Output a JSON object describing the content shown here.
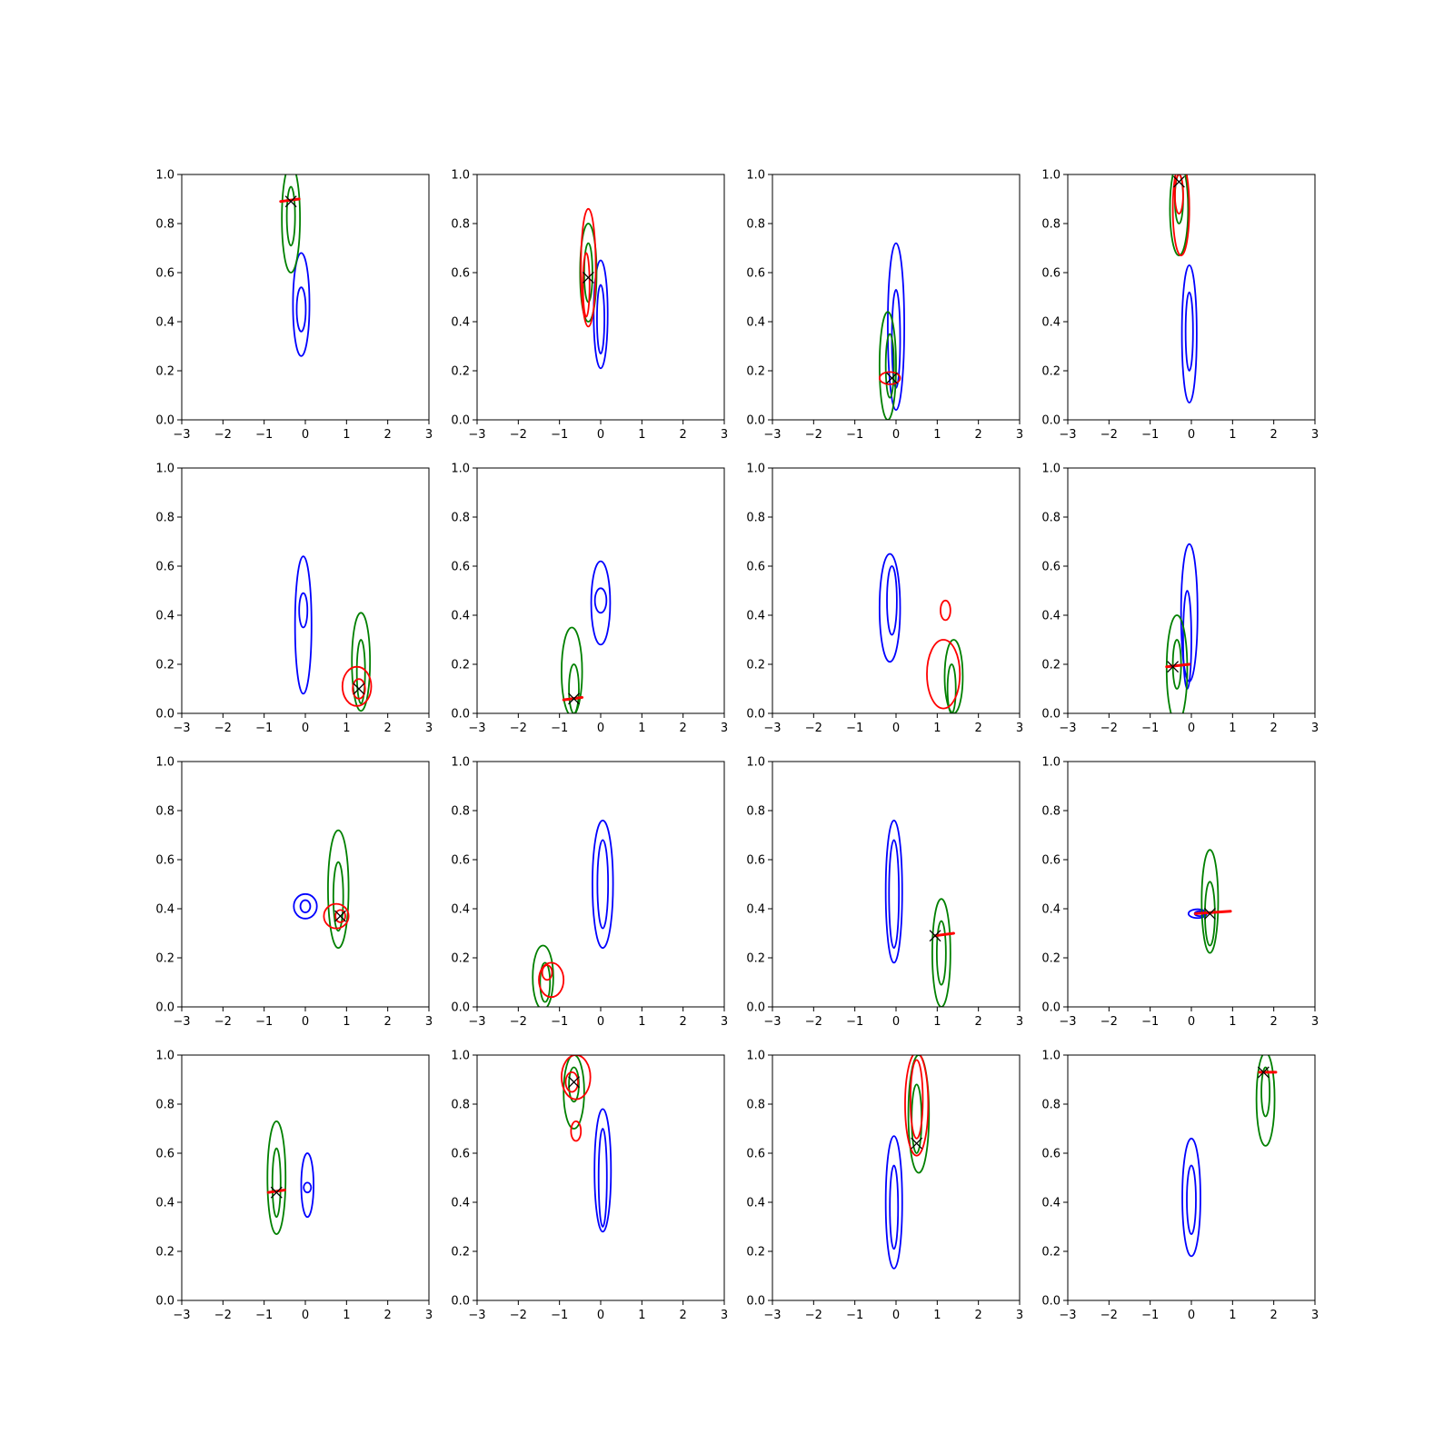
{
  "colors": {
    "blue": "#0000ff",
    "green": "#008000",
    "red": "#ff0000",
    "marker": "#000000"
  },
  "chart_data": [
    {
      "type": "contour",
      "xlim": [
        -3,
        3
      ],
      "ylim": [
        0,
        1
      ],
      "xticks": [
        "−3",
        "−2",
        "−1",
        "0",
        "1",
        "2",
        "3"
      ],
      "yticks": [
        "0.0",
        "0.2",
        "0.4",
        "0.6",
        "0.8",
        "1.0"
      ],
      "grid": false,
      "blue": [
        {
          "cx": -0.1,
          "cy": 0.47,
          "rx": 0.2,
          "ry": 0.21
        },
        {
          "cx": -0.1,
          "cy": 0.45,
          "rx": 0.11,
          "ry": 0.09
        }
      ],
      "green": [
        {
          "cx": -0.35,
          "cy": 0.82,
          "rx": 0.22,
          "ry": 0.22
        },
        {
          "cx": -0.35,
          "cy": 0.83,
          "rx": 0.1,
          "ry": 0.12
        }
      ],
      "red": [],
      "red_mark": [
        {
          "x1": -0.6,
          "y1": 0.89,
          "x2": -0.15,
          "y2": 0.9
        }
      ],
      "marker": {
        "x": -0.35,
        "y": 0.89
      }
    },
    {
      "type": "contour",
      "xlim": [
        -3,
        3
      ],
      "ylim": [
        0,
        1
      ],
      "xticks": [
        "−3",
        "−2",
        "−1",
        "0",
        "1",
        "2",
        "3"
      ],
      "yticks": [
        "0.0",
        "0.2",
        "0.4",
        "0.6",
        "0.8",
        "1.0"
      ],
      "grid": false,
      "blue": [
        {
          "cx": 0.0,
          "cy": 0.43,
          "rx": 0.17,
          "ry": 0.22
        },
        {
          "cx": 0.0,
          "cy": 0.41,
          "rx": 0.09,
          "ry": 0.14
        }
      ],
      "green": [
        {
          "cx": -0.3,
          "cy": 0.6,
          "rx": 0.2,
          "ry": 0.2
        },
        {
          "cx": -0.3,
          "cy": 0.6,
          "rx": 0.1,
          "ry": 0.12
        }
      ],
      "red": [
        {
          "cx": -0.3,
          "cy": 0.62,
          "rx": 0.18,
          "ry": 0.24
        },
        {
          "cx": -0.35,
          "cy": 0.55,
          "rx": 0.08,
          "ry": 0.13
        }
      ],
      "red_mark": [],
      "marker": {
        "x": -0.3,
        "y": 0.58
      }
    },
    {
      "type": "contour",
      "xlim": [
        -3,
        3
      ],
      "ylim": [
        0,
        1
      ],
      "xticks": [
        "−3",
        "−2",
        "−1",
        "0",
        "1",
        "2",
        "3"
      ],
      "yticks": [
        "0.0",
        "0.2",
        "0.4",
        "0.6",
        "0.8",
        "1.0"
      ],
      "grid": false,
      "blue": [
        {
          "cx": 0.0,
          "cy": 0.38,
          "rx": 0.2,
          "ry": 0.34
        },
        {
          "cx": 0.0,
          "cy": 0.33,
          "rx": 0.1,
          "ry": 0.2
        }
      ],
      "green": [
        {
          "cx": -0.2,
          "cy": 0.22,
          "rx": 0.2,
          "ry": 0.22
        },
        {
          "cx": -0.15,
          "cy": 0.22,
          "rx": 0.1,
          "ry": 0.13
        }
      ],
      "red": [
        {
          "cx": -0.15,
          "cy": 0.17,
          "rx": 0.25,
          "ry": 0.025
        }
      ],
      "red_mark": [],
      "marker": {
        "x": -0.1,
        "y": 0.17
      }
    },
    {
      "type": "contour",
      "xlim": [
        -3,
        3
      ],
      "ylim": [
        0,
        1
      ],
      "xticks": [
        "−3",
        "−2",
        "−1",
        "0",
        "1",
        "2",
        "3"
      ],
      "yticks": [
        "0.0",
        "0.2",
        "0.4",
        "0.6",
        "0.8",
        "1.0"
      ],
      "grid": false,
      "blue": [
        {
          "cx": -0.05,
          "cy": 0.35,
          "rx": 0.18,
          "ry": 0.28
        },
        {
          "cx": -0.05,
          "cy": 0.36,
          "rx": 0.09,
          "ry": 0.16
        }
      ],
      "green": [
        {
          "cx": -0.3,
          "cy": 0.86,
          "rx": 0.22,
          "ry": 0.19
        },
        {
          "cx": -0.3,
          "cy": 0.9,
          "rx": 0.1,
          "ry": 0.1
        }
      ],
      "red": [
        {
          "cx": -0.25,
          "cy": 0.86,
          "rx": 0.2,
          "ry": 0.19
        },
        {
          "cx": -0.3,
          "cy": 0.92,
          "rx": 0.1,
          "ry": 0.08
        }
      ],
      "red_mark": [],
      "marker": {
        "x": -0.3,
        "y": 0.97
      }
    },
    {
      "type": "contour",
      "xlim": [
        -3,
        3
      ],
      "ylim": [
        0,
        1
      ],
      "xticks": [
        "−3",
        "−2",
        "−1",
        "0",
        "1",
        "2",
        "3"
      ],
      "yticks": [
        "0.0",
        "0.2",
        "0.4",
        "0.6",
        "0.8",
        "1.0"
      ],
      "grid": false,
      "blue": [
        {
          "cx": -0.05,
          "cy": 0.36,
          "rx": 0.2,
          "ry": 0.28
        },
        {
          "cx": -0.05,
          "cy": 0.42,
          "rx": 0.1,
          "ry": 0.07
        }
      ],
      "green": [
        {
          "cx": 1.35,
          "cy": 0.21,
          "rx": 0.22,
          "ry": 0.2
        },
        {
          "cx": 1.35,
          "cy": 0.17,
          "rx": 0.1,
          "ry": 0.13
        }
      ],
      "red": [
        {
          "cx": 1.25,
          "cy": 0.11,
          "rx": 0.35,
          "ry": 0.08
        },
        {
          "cx": 1.3,
          "cy": 0.1,
          "rx": 0.15,
          "ry": 0.04
        }
      ],
      "red_mark": [],
      "marker": {
        "x": 1.3,
        "y": 0.1
      }
    },
    {
      "type": "contour",
      "xlim": [
        -3,
        3
      ],
      "ylim": [
        0,
        1
      ],
      "xticks": [
        "−3",
        "−2",
        "−1",
        "0",
        "1",
        "2",
        "3"
      ],
      "yticks": [
        "0.0",
        "0.2",
        "0.4",
        "0.6",
        "0.8",
        "1.0"
      ],
      "grid": false,
      "blue": [
        {
          "cx": 0.0,
          "cy": 0.45,
          "rx": 0.23,
          "ry": 0.17
        },
        {
          "cx": 0.0,
          "cy": 0.46,
          "rx": 0.14,
          "ry": 0.05
        }
      ],
      "green": [
        {
          "cx": -0.7,
          "cy": 0.17,
          "rx": 0.25,
          "ry": 0.18
        },
        {
          "cx": -0.65,
          "cy": 0.1,
          "rx": 0.12,
          "ry": 0.1
        }
      ],
      "red": [],
      "red_mark": [
        {
          "x1": -0.9,
          "y1": 0.055,
          "x2": -0.45,
          "y2": 0.065
        }
      ],
      "marker": {
        "x": -0.65,
        "y": 0.06
      }
    },
    {
      "type": "contour",
      "xlim": [
        -3,
        3
      ],
      "ylim": [
        0,
        1
      ],
      "xticks": [
        "−3",
        "−2",
        "−1",
        "0",
        "1",
        "2",
        "3"
      ],
      "yticks": [
        "0.0",
        "0.2",
        "0.4",
        "0.6",
        "0.8",
        "1.0"
      ],
      "grid": false,
      "blue": [
        {
          "cx": -0.15,
          "cy": 0.43,
          "rx": 0.25,
          "ry": 0.22
        },
        {
          "cx": -0.1,
          "cy": 0.46,
          "rx": 0.12,
          "ry": 0.14
        }
      ],
      "green": [
        {
          "cx": 1.4,
          "cy": 0.15,
          "rx": 0.22,
          "ry": 0.15
        },
        {
          "cx": 1.35,
          "cy": 0.1,
          "rx": 0.1,
          "ry": 0.1
        }
      ],
      "red": [
        {
          "cx": 1.15,
          "cy": 0.16,
          "rx": 0.4,
          "ry": 0.14
        },
        {
          "cx": 1.2,
          "cy": 0.42,
          "rx": 0.12,
          "ry": 0.04
        }
      ],
      "red_mark": [],
      "marker": null
    },
    {
      "type": "contour",
      "xlim": [
        -3,
        3
      ],
      "ylim": [
        0,
        1
      ],
      "xticks": [
        "−3",
        "−2",
        "−1",
        "0",
        "1",
        "2",
        "3"
      ],
      "yticks": [
        "0.0",
        "0.2",
        "0.4",
        "0.6",
        "0.8",
        "1.0"
      ],
      "grid": false,
      "blue": [
        {
          "cx": -0.05,
          "cy": 0.41,
          "rx": 0.2,
          "ry": 0.28
        },
        {
          "cx": -0.1,
          "cy": 0.3,
          "rx": 0.1,
          "ry": 0.2
        }
      ],
      "green": [
        {
          "cx": -0.35,
          "cy": 0.18,
          "rx": 0.25,
          "ry": 0.22
        },
        {
          "cx": -0.35,
          "cy": 0.2,
          "rx": 0.1,
          "ry": 0.1
        }
      ],
      "red": [],
      "red_mark": [
        {
          "x1": -0.6,
          "y1": 0.19,
          "x2": -0.05,
          "y2": 0.2
        }
      ],
      "marker": {
        "x": -0.45,
        "y": 0.19
      }
    },
    {
      "type": "contour",
      "xlim": [
        -3,
        3
      ],
      "ylim": [
        0,
        1
      ],
      "xticks": [
        "−3",
        "−2",
        "−1",
        "0",
        "1",
        "2",
        "3"
      ],
      "yticks": [
        "0.0",
        "0.2",
        "0.4",
        "0.6",
        "0.8",
        "1.0"
      ],
      "grid": false,
      "blue": [
        {
          "cx": 0.0,
          "cy": 0.41,
          "rx": 0.28,
          "ry": 0.05
        },
        {
          "cx": 0.0,
          "cy": 0.41,
          "rx": 0.12,
          "ry": 0.025
        }
      ],
      "green": [
        {
          "cx": 0.8,
          "cy": 0.48,
          "rx": 0.25,
          "ry": 0.24
        },
        {
          "cx": 0.8,
          "cy": 0.45,
          "rx": 0.12,
          "ry": 0.14
        }
      ],
      "red": [
        {
          "cx": 0.75,
          "cy": 0.37,
          "rx": 0.3,
          "ry": 0.05
        },
        {
          "cx": 0.85,
          "cy": 0.37,
          "rx": 0.12,
          "ry": 0.025
        }
      ],
      "red_mark": [],
      "marker": {
        "x": 0.85,
        "y": 0.37
      }
    },
    {
      "type": "contour",
      "xlim": [
        -3,
        3
      ],
      "ylim": [
        0,
        1
      ],
      "xticks": [
        "−3",
        "−2",
        "−1",
        "0",
        "1",
        "2",
        "3"
      ],
      "yticks": [
        "0.0",
        "0.2",
        "0.4",
        "0.6",
        "0.8",
        "1.0"
      ],
      "grid": false,
      "blue": [
        {
          "cx": 0.05,
          "cy": 0.5,
          "rx": 0.25,
          "ry": 0.26
        },
        {
          "cx": 0.05,
          "cy": 0.5,
          "rx": 0.13,
          "ry": 0.18
        }
      ],
      "green": [
        {
          "cx": -1.4,
          "cy": 0.12,
          "rx": 0.25,
          "ry": 0.13
        },
        {
          "cx": -1.35,
          "cy": 0.1,
          "rx": 0.12,
          "ry": 0.08
        }
      ],
      "red": [
        {
          "cx": -1.2,
          "cy": 0.11,
          "rx": 0.3,
          "ry": 0.07
        },
        {
          "cx": -1.3,
          "cy": 0.14,
          "rx": 0.12,
          "ry": 0.03
        }
      ],
      "red_mark": [],
      "marker": null
    },
    {
      "type": "contour",
      "xlim": [
        -3,
        3
      ],
      "ylim": [
        0,
        1
      ],
      "xticks": [
        "−3",
        "−2",
        "−1",
        "0",
        "1",
        "2",
        "3"
      ],
      "yticks": [
        "0.0",
        "0.2",
        "0.4",
        "0.6",
        "0.8",
        "1.0"
      ],
      "grid": false,
      "blue": [
        {
          "cx": -0.05,
          "cy": 0.47,
          "rx": 0.2,
          "ry": 0.29
        },
        {
          "cx": -0.05,
          "cy": 0.46,
          "rx": 0.12,
          "ry": 0.22
        }
      ],
      "green": [
        {
          "cx": 1.1,
          "cy": 0.22,
          "rx": 0.22,
          "ry": 0.22
        },
        {
          "cx": 1.1,
          "cy": 0.22,
          "rx": 0.11,
          "ry": 0.13
        }
      ],
      "red": [],
      "red_mark": [
        {
          "x1": 0.95,
          "y1": 0.29,
          "x2": 1.4,
          "y2": 0.3
        }
      ],
      "marker": {
        "x": 0.95,
        "y": 0.29
      }
    },
    {
      "type": "contour",
      "xlim": [
        -3,
        3
      ],
      "ylim": [
        0,
        1
      ],
      "xticks": [
        "−3",
        "−2",
        "−1",
        "0",
        "1",
        "2",
        "3"
      ],
      "yticks": [
        "0.0",
        "0.2",
        "0.4",
        "0.6",
        "0.8",
        "1.0"
      ],
      "grid": false,
      "blue": [
        {
          "cx": 0.15,
          "cy": 0.38,
          "rx": 0.22,
          "ry": 0.018
        },
        {
          "cx": 0.2,
          "cy": 0.38,
          "rx": 0.12,
          "ry": 0.01
        }
      ],
      "green": [
        {
          "cx": 0.45,
          "cy": 0.43,
          "rx": 0.2,
          "ry": 0.21
        },
        {
          "cx": 0.45,
          "cy": 0.38,
          "rx": 0.12,
          "ry": 0.13
        }
      ],
      "red": [],
      "red_mark": [
        {
          "x1": 0.1,
          "y1": 0.38,
          "x2": 0.95,
          "y2": 0.39
        }
      ],
      "marker": {
        "x": 0.45,
        "y": 0.38
      }
    },
    {
      "type": "contour",
      "xlim": [
        -3,
        3
      ],
      "ylim": [
        0,
        1
      ],
      "xticks": [
        "−3",
        "−2",
        "−1",
        "0",
        "1",
        "2",
        "3"
      ],
      "yticks": [
        "0.0",
        "0.2",
        "0.4",
        "0.6",
        "0.8",
        "1.0"
      ],
      "grid": false,
      "blue": [
        {
          "cx": 0.05,
          "cy": 0.47,
          "rx": 0.15,
          "ry": 0.13
        },
        {
          "cx": 0.05,
          "cy": 0.46,
          "rx": 0.09,
          "ry": 0.02
        }
      ],
      "green": [
        {
          "cx": -0.7,
          "cy": 0.5,
          "rx": 0.22,
          "ry": 0.23
        },
        {
          "cx": -0.7,
          "cy": 0.48,
          "rx": 0.1,
          "ry": 0.14
        }
      ],
      "red": [],
      "red_mark": [
        {
          "x1": -0.9,
          "y1": 0.44,
          "x2": -0.5,
          "y2": 0.45
        }
      ],
      "marker": {
        "x": -0.7,
        "y": 0.44
      }
    },
    {
      "type": "contour",
      "xlim": [
        -3,
        3
      ],
      "ylim": [
        0,
        1
      ],
      "xticks": [
        "−3",
        "−2",
        "−1",
        "0",
        "1",
        "2",
        "3"
      ],
      "yticks": [
        "0.0",
        "0.2",
        "0.4",
        "0.6",
        "0.8",
        "1.0"
      ],
      "grid": false,
      "blue": [
        {
          "cx": 0.05,
          "cy": 0.53,
          "rx": 0.2,
          "ry": 0.25
        },
        {
          "cx": 0.05,
          "cy": 0.5,
          "rx": 0.1,
          "ry": 0.2
        }
      ],
      "green": [
        {
          "cx": -0.65,
          "cy": 0.85,
          "rx": 0.25,
          "ry": 0.15
        },
        {
          "cx": -0.65,
          "cy": 0.88,
          "rx": 0.12,
          "ry": 0.07
        }
      ],
      "red": [
        {
          "cx": -0.6,
          "cy": 0.91,
          "rx": 0.35,
          "ry": 0.09
        },
        {
          "cx": -0.7,
          "cy": 0.89,
          "rx": 0.15,
          "ry": 0.04
        },
        {
          "cx": -0.6,
          "cy": 0.69,
          "rx": 0.12,
          "ry": 0.04
        }
      ],
      "red_mark": [],
      "marker": {
        "x": -0.65,
        "y": 0.89
      }
    },
    {
      "type": "contour",
      "xlim": [
        -3,
        3
      ],
      "ylim": [
        0,
        1
      ],
      "xticks": [
        "−3",
        "−2",
        "−1",
        "0",
        "1",
        "2",
        "3"
      ],
      "yticks": [
        "0.0",
        "0.2",
        "0.4",
        "0.6",
        "0.8",
        "1.0"
      ],
      "grid": false,
      "blue": [
        {
          "cx": -0.05,
          "cy": 0.4,
          "rx": 0.2,
          "ry": 0.27
        },
        {
          "cx": -0.05,
          "cy": 0.38,
          "rx": 0.1,
          "ry": 0.17
        }
      ],
      "green": [
        {
          "cx": 0.55,
          "cy": 0.76,
          "rx": 0.25,
          "ry": 0.24
        },
        {
          "cx": 0.5,
          "cy": 0.74,
          "rx": 0.12,
          "ry": 0.14
        }
      ],
      "red": [
        {
          "cx": 0.5,
          "cy": 0.8,
          "rx": 0.28,
          "ry": 0.21
        },
        {
          "cx": 0.5,
          "cy": 0.82,
          "rx": 0.15,
          "ry": 0.16
        }
      ],
      "red_mark": [],
      "marker": {
        "x": 0.5,
        "y": 0.64
      }
    },
    {
      "type": "contour",
      "xlim": [
        -3,
        3
      ],
      "ylim": [
        0,
        1
      ],
      "xticks": [
        "−3",
        "−2",
        "−1",
        "0",
        "1",
        "2",
        "3"
      ],
      "yticks": [
        "0.0",
        "0.2",
        "0.4",
        "0.6",
        "0.8",
        "1.0"
      ],
      "grid": false,
      "blue": [
        {
          "cx": 0.0,
          "cy": 0.42,
          "rx": 0.22,
          "ry": 0.24
        },
        {
          "cx": 0.0,
          "cy": 0.41,
          "rx": 0.11,
          "ry": 0.14
        }
      ],
      "green": [
        {
          "cx": 1.8,
          "cy": 0.82,
          "rx": 0.22,
          "ry": 0.19
        },
        {
          "cx": 1.8,
          "cy": 0.85,
          "rx": 0.1,
          "ry": 0.1
        }
      ],
      "red": [],
      "red_mark": [
        {
          "x1": 1.65,
          "y1": 0.93,
          "x2": 2.05,
          "y2": 0.93
        }
      ],
      "marker": {
        "x": 1.75,
        "y": 0.93
      }
    }
  ]
}
